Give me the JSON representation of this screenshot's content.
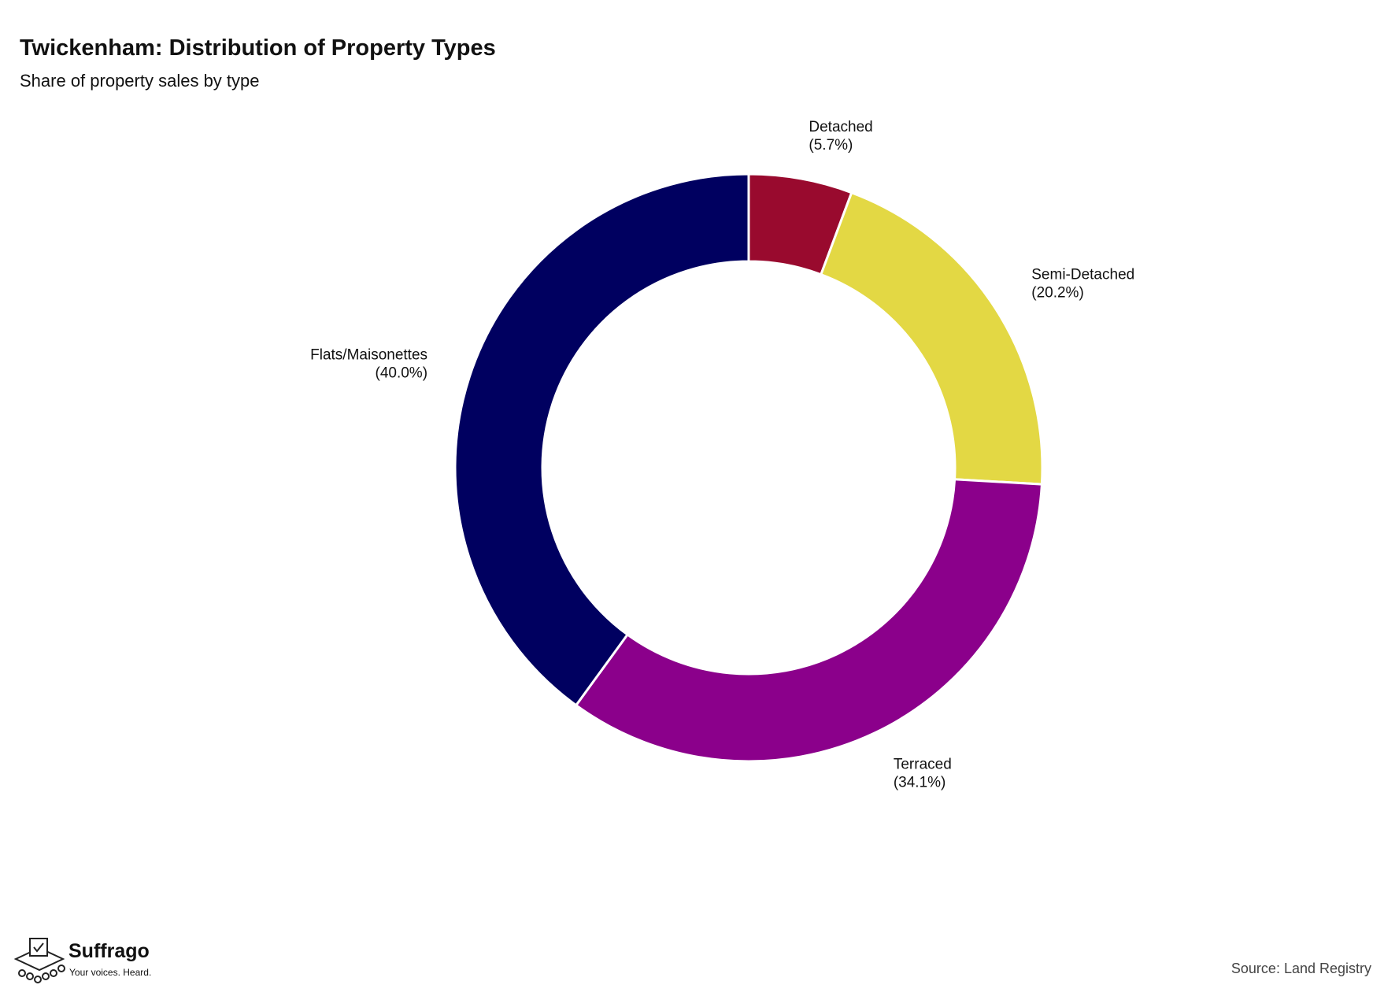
{
  "chart_data": {
    "type": "donut",
    "title": "Twickenham: Distribution of Property Types",
    "subtitle": "Share of property sales by type",
    "categories": [
      "Detached",
      "Semi-Detached",
      "Terraced",
      "Flats/Maisonettes"
    ],
    "values": [
      5.7,
      20.2,
      34.1,
      40.0
    ],
    "value_labels": [
      "(5.7%)",
      "(20.2%)",
      "(34.1%)",
      "(40.0%)"
    ],
    "colors": [
      "#990a2e",
      "#e3d844",
      "#8b008b",
      "#000060"
    ],
    "source": "Source: Land Registry",
    "logo_name": "Suffrago",
    "logo_tagline": "Your voices. Heard."
  }
}
